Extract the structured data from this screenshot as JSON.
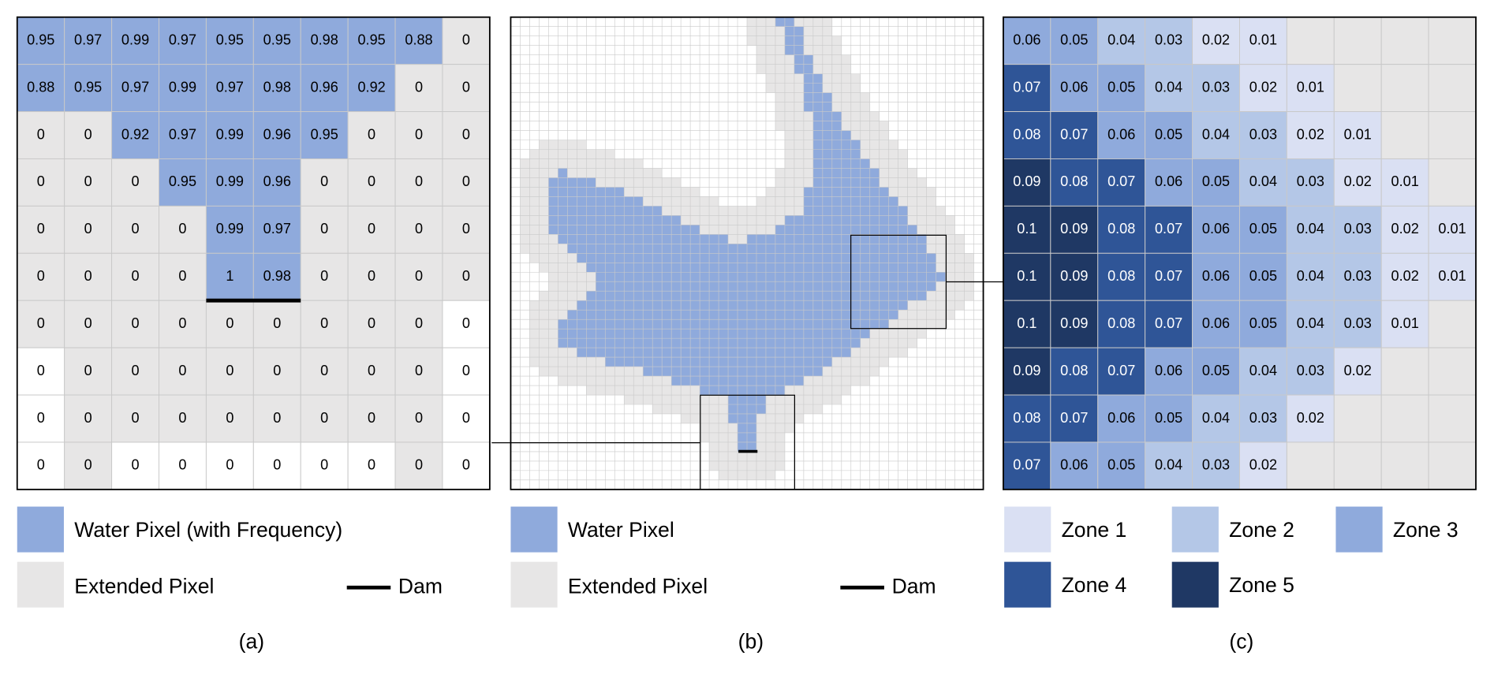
{
  "panel_a": {
    "cells": [
      [
        0.95,
        0.97,
        0.99,
        0.97,
        0.95,
        0.95,
        0.98,
        0.95,
        0.88,
        0
      ],
      [
        0.88,
        0.95,
        0.97,
        0.99,
        0.97,
        0.98,
        0.96,
        0.92,
        0,
        0
      ],
      [
        0,
        0,
        0.92,
        0.97,
        0.99,
        0.96,
        0.95,
        0,
        0,
        0
      ],
      [
        0,
        0,
        0,
        0.95,
        0.99,
        0.96,
        0,
        0,
        0,
        0
      ],
      [
        0,
        0,
        0,
        0,
        0.99,
        0.97,
        0,
        0,
        0,
        0
      ],
      [
        0,
        0,
        0,
        0,
        1,
        0.98,
        0,
        0,
        0,
        0
      ],
      [
        0,
        0,
        0,
        0,
        0,
        0,
        0,
        0,
        0,
        0
      ],
      [
        0,
        0,
        0,
        0,
        0,
        0,
        0,
        0,
        0,
        0
      ],
      [
        0,
        0,
        0,
        0,
        0,
        0,
        0,
        0,
        0,
        0
      ],
      [
        0,
        0,
        0,
        0,
        0,
        0,
        0,
        0,
        0,
        0
      ]
    ],
    "legend": {
      "water": "Water Pixel (with Frequency)",
      "extended": "Extended Pixel",
      "dam": "Dam"
    },
    "caption": "(a)"
  },
  "panel_b": {
    "legend": {
      "water": "Water Pixel",
      "extended": "Extended Pixel",
      "dam": "Dam"
    },
    "caption": "(b)"
  },
  "panel_c": {
    "cells": [
      [
        0.06,
        0.05,
        0.04,
        0.03,
        0.02,
        0.01,
        null,
        null,
        null,
        null
      ],
      [
        0.07,
        0.06,
        0.05,
        0.04,
        0.03,
        0.02,
        0.01,
        null,
        null,
        null
      ],
      [
        0.08,
        0.07,
        0.06,
        0.05,
        0.04,
        0.03,
        0.02,
        0.01,
        null,
        null
      ],
      [
        0.09,
        0.08,
        0.07,
        0.06,
        0.05,
        0.04,
        0.03,
        0.02,
        0.01,
        null
      ],
      [
        0.1,
        0.09,
        0.08,
        0.07,
        0.06,
        0.05,
        0.04,
        0.03,
        0.02,
        0.01
      ],
      [
        0.1,
        0.09,
        0.08,
        0.07,
        0.06,
        0.05,
        0.04,
        0.03,
        0.02,
        0.01
      ],
      [
        0.1,
        0.09,
        0.08,
        0.07,
        0.06,
        0.05,
        0.04,
        0.03,
        0.01,
        null
      ],
      [
        0.09,
        0.08,
        0.07,
        0.06,
        0.05,
        0.04,
        0.03,
        0.02,
        null,
        null
      ],
      [
        0.08,
        0.07,
        0.06,
        0.05,
        0.04,
        0.03,
        0.02,
        null,
        null,
        null
      ],
      [
        0.07,
        0.06,
        0.05,
        0.04,
        0.03,
        0.02,
        null,
        null,
        null,
        null
      ]
    ],
    "legend": [
      {
        "label": "Zone 1",
        "color": "#dae0f3"
      },
      {
        "label": "Zone 2",
        "color": "#b4c7e7"
      },
      {
        "label": "Zone 3",
        "color": "#8faadc"
      },
      {
        "label": "Zone 4",
        "color": "#2f5597"
      },
      {
        "label": "Zone 5",
        "color": "#1f3864"
      }
    ],
    "caption": "(c)"
  }
}
